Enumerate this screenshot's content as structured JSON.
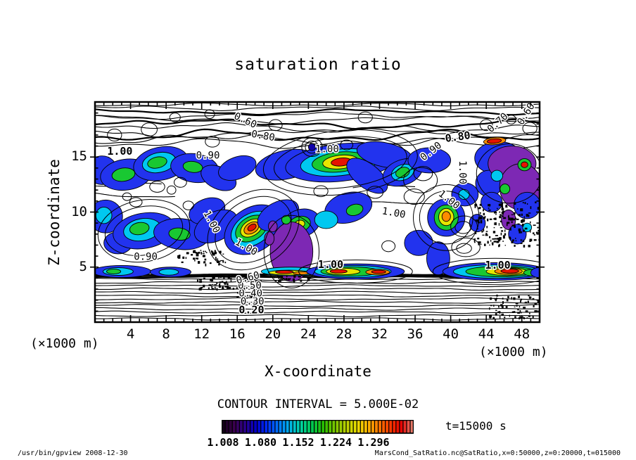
{
  "title": "saturation ratio",
  "plot": {
    "x_label": "X-coordinate",
    "y_label": "Z-coordinate",
    "x_unit_left": "(×1000 m)",
    "x_unit_right": "(×1000 m)"
  },
  "contour_note": "CONTOUR INTERVAL = 5.000E-02",
  "time_label": "t=15000 s",
  "footer_left": "/usr/bin/gpview  2008-12-30",
  "footer_right": "MarsCond_SatRatio.nc@SatRatio,x=0:50000,z=0:20000,t=015000",
  "chart_data": {
    "type": "contour",
    "title": "saturation ratio",
    "xlabel": "X-coordinate (×1000 m)",
    "ylabel": "Z-coordinate (×1000 m)",
    "x_range": [
      0,
      50
    ],
    "z_range": [
      0,
      20
    ],
    "x_ticks": [
      4,
      8,
      12,
      16,
      20,
      24,
      28,
      32,
      36,
      40,
      44,
      48
    ],
    "z_ticks": [
      5,
      10,
      15
    ],
    "contour_interval": 0.05,
    "time": "t=15000 s",
    "grid": false,
    "colorbar": {
      "tick_labels": [
        "1.008",
        "1.080",
        "1.152",
        "1.224",
        "1.296"
      ],
      "segments": 54,
      "palette": [
        "#140019",
        "#3c0050",
        "#28008c",
        "#0000c8",
        "#0032ff",
        "#0078ff",
        "#00b4e6",
        "#00d2a0",
        "#00c850",
        "#28be00",
        "#78c800",
        "#b4cd00",
        "#e6dc00",
        "#ffb400",
        "#ff7800",
        "#ff3c00",
        "#e60000",
        "#e87868"
      ]
    },
    "fill_colors": {
      "navy": "#1100aa",
      "blue": "#2233ee",
      "cyan": "#00c8f0",
      "green": "#19c832",
      "yellow": "#e6e600",
      "orange": "#ff8c00",
      "red": "#e61400",
      "purple": "#7d28b4"
    },
    "contour_line_labels": [
      {
        "t": "1.00",
        "x": 2.8,
        "z": 15.5,
        "r": 0,
        "b": 1
      },
      {
        "t": "0.90",
        "x": 12.7,
        "z": 15.1,
        "r": 0,
        "b": 0
      },
      {
        "t": "0.60",
        "x": 16.9,
        "z": 18.3,
        "r": 25,
        "b": 0
      },
      {
        "t": "0.80",
        "x": 18.9,
        "z": 16.9,
        "r": 10,
        "b": 0
      },
      {
        "t": "1.00",
        "x": 26.1,
        "z": 15.7,
        "r": 0,
        "b": 0
      },
      {
        "t": "0.90",
        "x": 37.8,
        "z": 15.5,
        "r": -38,
        "b": 0
      },
      {
        "t": "0.80",
        "x": 40.8,
        "z": 16.8,
        "r": -8,
        "b": 1
      },
      {
        "t": "0.70",
        "x": 45.3,
        "z": 18.1,
        "r": -42,
        "b": 0
      },
      {
        "t": "0.60",
        "x": 48.5,
        "z": 18.9,
        "r": -58,
        "b": 0
      },
      {
        "t": "1.00",
        "x": 41.3,
        "z": 13.6,
        "r": 90,
        "b": 0
      },
      {
        "t": "1.00",
        "x": 39.8,
        "z": 11.1,
        "r": 38,
        "b": 0
      },
      {
        "t": "1.00",
        "x": 33.6,
        "z": 9.9,
        "r": 10,
        "b": 0
      },
      {
        "t": "0.90",
        "x": 5.7,
        "z": 5.9,
        "r": 0,
        "b": 0
      },
      {
        "t": "1.00",
        "x": 13.1,
        "z": 9.1,
        "r": 62,
        "b": 0
      },
      {
        "t": "1.00",
        "x": 17.0,
        "z": 6.8,
        "r": 30,
        "b": 0
      },
      {
        "t": "1.00",
        "x": 26.5,
        "z": 5.2,
        "r": 0,
        "b": 1
      },
      {
        "t": "1.00",
        "x": 45.3,
        "z": 5.15,
        "r": 0,
        "b": 1
      },
      {
        "t": "0.20",
        "x": 17.6,
        "z": 1.1,
        "r": 0,
        "b": 1
      },
      {
        "t": "0.30",
        "x": 17.7,
        "z": 1.85,
        "r": 0,
        "b": 0
      },
      {
        "t": "0.40",
        "x": 17.5,
        "z": 2.6,
        "r": 0,
        "b": 0
      },
      {
        "t": "0.50",
        "x": 17.4,
        "z": 3.3,
        "r": 0,
        "b": 0
      },
      {
        "t": "0.60",
        "x": 17.2,
        "z": 4.0,
        "r": -15,
        "b": 0
      }
    ],
    "filled_features": [
      [
        "blue",
        0.8,
        13.8,
        1.7,
        1.3,
        0
      ],
      [
        "blue",
        3.5,
        13.4,
        2.9,
        1.4,
        -8
      ],
      [
        "green",
        3.2,
        13.4,
        1.3,
        0.6,
        -8
      ],
      [
        "blue",
        7.4,
        14.4,
        3.1,
        1.5,
        -12
      ],
      [
        "cyan",
        7.2,
        14.5,
        1.9,
        0.9,
        -12
      ],
      [
        "green",
        7.0,
        14.5,
        1.1,
        0.5,
        -12
      ],
      [
        "blue",
        11.2,
        14.0,
        2.7,
        1.3,
        8
      ],
      [
        "green",
        11.0,
        14.1,
        1.1,
        0.5,
        8
      ],
      [
        "blue",
        13.9,
        13.1,
        2.1,
        1.0,
        25
      ],
      [
        "blue",
        16.0,
        14.0,
        2.2,
        1.0,
        -20
      ],
      [
        "blue",
        21.5,
        14.3,
        3.5,
        1.3,
        -12
      ],
      [
        "blue",
        27.6,
        14.5,
        6.2,
        1.7,
        -6
      ],
      [
        "cyan",
        27.5,
        14.5,
        4.4,
        1.2,
        -6
      ],
      [
        "green",
        27.5,
        14.55,
        3.1,
        0.9,
        -6
      ],
      [
        "yellow",
        27.6,
        14.55,
        2.0,
        0.62,
        -6
      ],
      [
        "red",
        27.7,
        14.55,
        1.15,
        0.36,
        -6
      ],
      [
        "blue",
        32.6,
        15.2,
        3.2,
        1.1,
        12
      ],
      [
        "blue",
        30.6,
        13.3,
        2.7,
        1.1,
        38
      ],
      [
        "blue",
        34.6,
        13.6,
        2.3,
        1.15,
        -20
      ],
      [
        "cyan",
        34.6,
        13.6,
        1.3,
        0.7,
        -20
      ],
      [
        "green",
        34.6,
        13.6,
        0.8,
        0.45,
        -20
      ],
      [
        "blue",
        37.6,
        14.7,
        2.4,
        1.15,
        0
      ],
      [
        "navy",
        24.4,
        15.9,
        0.4,
        0.32,
        0
      ],
      [
        "blue",
        45.4,
        14.9,
        2.7,
        1.5,
        0
      ],
      [
        "blue",
        44.3,
        12.6,
        1.5,
        1.2,
        0
      ],
      [
        "purple",
        46.9,
        14.4,
        2.7,
        1.6,
        0
      ],
      [
        "purple",
        47.9,
        12.3,
        2.4,
        2.1,
        0
      ],
      [
        "cyan",
        45.2,
        13.3,
        0.65,
        0.5,
        0
      ],
      [
        "green",
        46.1,
        12.1,
        0.55,
        0.45,
        0
      ],
      [
        "orange",
        44.95,
        16.45,
        1.25,
        0.33,
        -5
      ],
      [
        "red",
        44.9,
        16.45,
        0.8,
        0.2,
        -5
      ],
      [
        "green",
        48.3,
        14.3,
        0.75,
        0.55,
        0
      ],
      [
        "red",
        48.3,
        14.3,
        0.38,
        0.26,
        0
      ],
      [
        "blue",
        48.6,
        10.6,
        1.5,
        1.2,
        0
      ],
      [
        "blue",
        44.6,
        10.9,
        1.2,
        0.9,
        0
      ],
      [
        "blue",
        43.0,
        9.0,
        0.9,
        0.8,
        0
      ],
      [
        "purple",
        46.5,
        9.3,
        0.8,
        0.9,
        0
      ],
      [
        "blue",
        47.5,
        8.0,
        1.0,
        0.9,
        0
      ],
      [
        "cyan",
        48.6,
        8.6,
        0.5,
        0.4,
        0
      ],
      [
        "blue",
        1.2,
        9.6,
        1.9,
        1.5,
        0
      ],
      [
        "cyan",
        1.0,
        9.7,
        0.9,
        0.75,
        0
      ],
      [
        "blue",
        2.6,
        7.2,
        1.6,
        1.0,
        0
      ],
      [
        "blue",
        5.5,
        8.3,
        3.5,
        1.6,
        -10
      ],
      [
        "cyan",
        5.3,
        8.4,
        2.1,
        1.0,
        -10
      ],
      [
        "green",
        5.0,
        8.5,
        1.1,
        0.55,
        -10
      ],
      [
        "blue",
        9.7,
        8.0,
        3.1,
        1.4,
        6
      ],
      [
        "green",
        9.5,
        8.0,
        1.2,
        0.55,
        6
      ],
      [
        "blue",
        12.6,
        10.1,
        2.1,
        1.1,
        -22
      ],
      [
        "blue",
        13.6,
        8.7,
        2.6,
        1.3,
        -28
      ],
      [
        "blue",
        17.8,
        8.4,
        3.5,
        2.0,
        -32
      ],
      [
        "cyan",
        17.7,
        8.45,
        2.6,
        1.4,
        -32
      ],
      [
        "green",
        17.6,
        8.5,
        1.95,
        1.05,
        -32
      ],
      [
        "yellow",
        17.6,
        8.55,
        1.35,
        0.7,
        -32
      ],
      [
        "orange",
        17.6,
        8.55,
        0.92,
        0.47,
        -32
      ],
      [
        "red",
        17.65,
        8.6,
        0.52,
        0.26,
        -32
      ],
      [
        "blue",
        20.6,
        9.7,
        2.5,
        1.2,
        -28
      ],
      [
        "blue",
        23.2,
        9.0,
        2.1,
        1.25,
        -15
      ],
      [
        "green",
        23.0,
        8.9,
        1.25,
        0.7,
        -15
      ],
      [
        "yellow",
        23.0,
        8.9,
        0.6,
        0.35,
        -15
      ],
      [
        "blue",
        28.5,
        10.4,
        2.7,
        1.35,
        -15
      ],
      [
        "green",
        29.2,
        10.2,
        0.95,
        0.5,
        -15
      ],
      [
        "cyan",
        26.0,
        9.3,
        1.3,
        0.8,
        0
      ],
      [
        "blue",
        39.5,
        9.5,
        2.1,
        1.7,
        0
      ],
      [
        "green",
        39.5,
        9.5,
        1.35,
        1.15,
        0
      ],
      [
        "yellow",
        39.5,
        9.55,
        0.85,
        0.78,
        0
      ],
      [
        "orange",
        39.5,
        9.6,
        0.48,
        0.45,
        0
      ],
      [
        "blue",
        36.4,
        7.2,
        1.6,
        1.15,
        0
      ],
      [
        "blue",
        38.6,
        5.8,
        1.3,
        1.5,
        0
      ],
      [
        "blue",
        41.6,
        11.6,
        1.5,
        1.05,
        0
      ],
      [
        "cyan",
        41.5,
        11.6,
        0.6,
        0.45,
        0
      ],
      [
        "purple",
        22.1,
        6.4,
        2.4,
        2.7,
        0
      ],
      [
        "purple",
        19.6,
        7.6,
        0.55,
        0.6,
        0
      ],
      [
        "purple",
        20.0,
        8.7,
        0.5,
        0.5,
        0
      ],
      [
        "green",
        21.5,
        9.3,
        0.5,
        0.4,
        0
      ],
      [
        "cyan",
        22.0,
        4.6,
        3.3,
        0.4,
        0
      ],
      [
        "yellow",
        21.8,
        4.5,
        2.3,
        0.22,
        0
      ],
      [
        "red",
        21.3,
        4.55,
        1.0,
        0.14,
        0
      ],
      [
        "orange",
        23.2,
        4.45,
        0.9,
        0.13,
        0
      ],
      [
        "blue",
        3.0,
        4.6,
        3.3,
        0.55,
        0
      ],
      [
        "cyan",
        2.6,
        4.6,
        1.7,
        0.35,
        0
      ],
      [
        "green",
        2.1,
        4.6,
        0.8,
        0.22,
        0
      ],
      [
        "blue",
        8.5,
        4.55,
        2.3,
        0.45,
        0
      ],
      [
        "cyan",
        8.3,
        4.55,
        1.1,
        0.28,
        0
      ],
      [
        "blue",
        29.3,
        4.6,
        5.5,
        0.7,
        0
      ],
      [
        "cyan",
        29.0,
        4.6,
        4.3,
        0.55,
        0
      ],
      [
        "green",
        28.7,
        4.6,
        3.3,
        0.42,
        0
      ],
      [
        "yellow",
        27.9,
        4.6,
        1.9,
        0.3,
        0
      ],
      [
        "red",
        27.4,
        4.62,
        0.95,
        0.17,
        0
      ],
      [
        "orange",
        31.8,
        4.55,
        1.35,
        0.26,
        0
      ],
      [
        "red",
        31.9,
        4.57,
        0.8,
        0.15,
        0
      ],
      [
        "blue",
        45.0,
        4.6,
        5.9,
        0.8,
        0
      ],
      [
        "cyan",
        45.2,
        4.6,
        4.9,
        0.62,
        0
      ],
      [
        "green",
        45.6,
        4.6,
        3.9,
        0.48,
        0
      ],
      [
        "yellow",
        46.3,
        4.6,
        2.3,
        0.36,
        0
      ],
      [
        "orange",
        46.5,
        4.62,
        1.55,
        0.28,
        0
      ],
      [
        "red",
        46.65,
        4.64,
        1.0,
        0.19,
        0
      ],
      [
        "green",
        49.4,
        4.5,
        1.2,
        0.32,
        0
      ],
      [
        "blue",
        49.9,
        4.5,
        0.9,
        0.45,
        0
      ]
    ],
    "loop_contours": [
      [
        7.0,
        12.3,
        0.85,
        0.5,
        0
      ],
      [
        8.6,
        12.0,
        0.5,
        0.38,
        0
      ],
      [
        9.6,
        12.7,
        0.7,
        0.45,
        0
      ],
      [
        6.1,
        17.5,
        0.9,
        0.6,
        0
      ],
      [
        9.0,
        18.6,
        0.6,
        0.4,
        0
      ],
      [
        13.2,
        16.4,
        0.8,
        0.5,
        0
      ],
      [
        12.9,
        18.9,
        0.55,
        0.4,
        0
      ],
      [
        20.3,
        17.9,
        0.75,
        0.5,
        0
      ],
      [
        24.4,
        15.9,
        0.75,
        0.55,
        0
      ],
      [
        24.4,
        15.9,
        1.15,
        0.85,
        0
      ],
      [
        28.3,
        16.1,
        0.7,
        0.45,
        0
      ],
      [
        30.4,
        18.6,
        0.8,
        0.5,
        0
      ],
      [
        36.9,
        13.5,
        1.05,
        0.65,
        0
      ],
      [
        36.6,
        12.9,
        1.9,
        1.15,
        0
      ],
      [
        35.9,
        11.4,
        1.15,
        0.7,
        0
      ],
      [
        41.5,
        8.7,
        1.5,
        0.95,
        0
      ],
      [
        41.4,
        8.6,
        0.9,
        0.55,
        0
      ],
      [
        41.7,
        6.8,
        1.6,
        0.85,
        0
      ],
      [
        41.5,
        6.7,
        0.85,
        0.45,
        0
      ],
      [
        4.6,
        10.9,
        0.7,
        0.42,
        0
      ],
      [
        3.6,
        11.4,
        0.5,
        0.35,
        0
      ],
      [
        44.0,
        17.9,
        0.7,
        0.5,
        0
      ],
      [
        46.8,
        18.4,
        0.55,
        0.4,
        0
      ],
      [
        48.9,
        17.6,
        0.8,
        0.55,
        0
      ],
      [
        2.2,
        17.0,
        0.8,
        0.55,
        0
      ],
      [
        31.5,
        11.8,
        0.9,
        0.55,
        0
      ],
      [
        33.0,
        6.9,
        0.75,
        0.5,
        0
      ],
      [
        25.4,
        11.9,
        0.8,
        0.5,
        0
      ],
      [
        10.5,
        10.6,
        0.6,
        0.4,
        0
      ],
      [
        17.8,
        8.4,
        4.6,
        2.7,
        -32
      ],
      [
        17.8,
        8.4,
        5.5,
        3.3,
        -32
      ],
      [
        27.6,
        14.5,
        7.5,
        2.3,
        -6
      ],
      [
        27.6,
        14.5,
        8.7,
        2.9,
        -6
      ],
      [
        46.6,
        13.5,
        3.7,
        2.7,
        0
      ],
      [
        29.3,
        4.6,
        6.4,
        1.05,
        0
      ],
      [
        45.0,
        4.6,
        7.0,
        1.2,
        0
      ],
      [
        39.5,
        9.5,
        3.0,
        2.4,
        0
      ],
      [
        39.5,
        9.5,
        3.7,
        3.0,
        0
      ],
      [
        22.1,
        6.4,
        3.1,
        3.3,
        0
      ],
      [
        5.5,
        8.3,
        4.4,
        2.2,
        -10
      ],
      [
        5.5,
        8.3,
        5.2,
        2.8,
        -10
      ]
    ],
    "decor": {
      "top_lines": [
        {
          "z": 19.75,
          "amp": 0.18,
          "bold": 0
        },
        {
          "z": 19.45,
          "amp": 0.25,
          "bold": 0
        },
        {
          "z": 19.1,
          "amp": 0.3,
          "bold": 1
        },
        {
          "z": 18.75,
          "amp": 0.35,
          "bold": 0
        },
        {
          "z": 18.4,
          "amp": 0.42,
          "bold": 0
        },
        {
          "z": 18.0,
          "amp": 0.5,
          "bold": 1
        },
        {
          "z": 17.6,
          "amp": 0.55,
          "bold": 0
        },
        {
          "z": 17.25,
          "amp": 0.6,
          "bold": 0
        },
        {
          "z": 16.9,
          "amp": 0.65,
          "bold": 1
        },
        {
          "z": 16.55,
          "amp": 0.6,
          "bold": 0
        },
        {
          "z": 16.2,
          "amp": 0.55,
          "bold": 0
        }
      ],
      "bottom_lines": [
        0.3,
        0.6,
        0.9,
        1.2,
        1.5,
        1.8,
        2.1,
        2.4,
        2.7,
        3.0,
        3.3,
        3.6,
        3.9
      ],
      "thick_band": [
        4.12,
        4.3
      ],
      "mid_lines": [
        {
          "z": 11.6,
          "amp": 0.3,
          "x0": 0,
          "x1": 9
        },
        {
          "z": 12.4,
          "amp": 0.25,
          "x0": 0,
          "x1": 7.5
        },
        {
          "z": 10.9,
          "amp": 0.25,
          "x0": 30,
          "x1": 38
        },
        {
          "z": 12.2,
          "amp": 0.3,
          "x0": 29,
          "x1": 36
        }
      ],
      "speckle_clusters": [
        {
          "x": [
            42.6,
            50
          ],
          "z": [
            7.0,
            11.0
          ],
          "n": 170,
          "seed": 11
        },
        {
          "x": [
            44.3,
            50
          ],
          "z": [
            0.4,
            2.6
          ],
          "n": 70,
          "seed": 22
        },
        {
          "x": [
            9.0,
            14.6
          ],
          "z": [
            5.3,
            6.6
          ],
          "n": 55,
          "seed": 33
        },
        {
          "x": [
            11.3,
            15.5
          ],
          "z": [
            3.0,
            4.4
          ],
          "n": 55,
          "seed": 44
        },
        {
          "x": [
            15.8,
            18.6
          ],
          "z": [
            2.3,
            4.3
          ],
          "n": 40,
          "seed": 55
        },
        {
          "x": [
            20.0,
            24.0
          ],
          "z": [
            3.8,
            4.3
          ],
          "n": 25,
          "seed": 66
        }
      ]
    }
  }
}
